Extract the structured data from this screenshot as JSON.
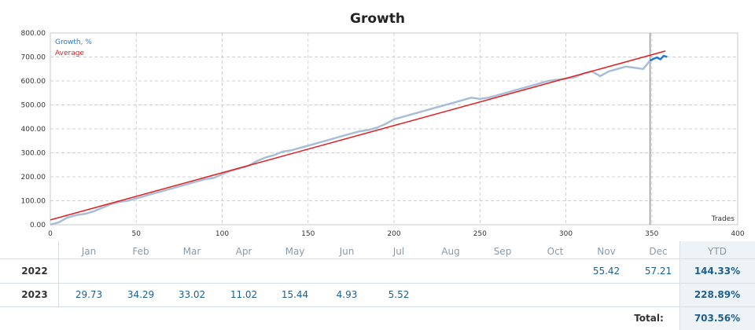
{
  "chart_data": {
    "type": "line",
    "title": "Growth",
    "xlabel": "Trades",
    "ylabel": "",
    "xlim": [
      0,
      400
    ],
    "ylim": [
      0,
      800
    ],
    "x_ticks": [
      "0",
      "50",
      "100",
      "150",
      "200",
      "250",
      "300",
      "350",
      "400"
    ],
    "y_ticks": [
      "0.00",
      "100.00",
      "200.00",
      "300.00",
      "400.00",
      "500.00",
      "600.00",
      "700.00",
      "800.00"
    ],
    "legend": [
      "Growth, %",
      "Average"
    ],
    "legend_position": "top-left",
    "grid": true,
    "colors": {
      "growth": "#a8bed6",
      "growth_recent": "#1f78d1",
      "average": "#e02020",
      "grid": "#d0d0d0",
      "marker": "#9a9a9a"
    },
    "series": [
      {
        "name": "Growth, %",
        "x": [
          0,
          5,
          10,
          15,
          20,
          25,
          30,
          35,
          40,
          45,
          50,
          55,
          60,
          65,
          70,
          75,
          80,
          85,
          90,
          95,
          100,
          105,
          110,
          115,
          120,
          125,
          130,
          135,
          140,
          145,
          150,
          155,
          160,
          165,
          170,
          175,
          180,
          185,
          190,
          195,
          200,
          205,
          210,
          215,
          220,
          225,
          230,
          235,
          240,
          245,
          250,
          255,
          260,
          265,
          270,
          275,
          280,
          285,
          290,
          295,
          300,
          305,
          310,
          315,
          320,
          325,
          330,
          335,
          340,
          345,
          349
        ],
        "y": [
          0,
          10,
          30,
          40,
          45,
          55,
          70,
          85,
          95,
          100,
          110,
          120,
          130,
          140,
          150,
          160,
          170,
          180,
          190,
          195,
          210,
          225,
          235,
          245,
          265,
          280,
          290,
          305,
          310,
          320,
          330,
          340,
          350,
          360,
          370,
          380,
          390,
          395,
          405,
          420,
          440,
          450,
          460,
          470,
          480,
          490,
          500,
          510,
          520,
          530,
          525,
          530,
          540,
          550,
          560,
          570,
          580,
          590,
          600,
          605,
          610,
          615,
          630,
          640,
          620,
          640,
          650,
          660,
          655,
          650,
          685
        ]
      },
      {
        "name": "Growth, % (recent)",
        "x": [
          349,
          351,
          353,
          355,
          357,
          359
        ],
        "y": [
          685,
          692,
          698,
          690,
          705,
          700
        ]
      },
      {
        "name": "Average",
        "x": [
          0,
          358
        ],
        "y": [
          20,
          725
        ]
      }
    ],
    "vertical_marker_x": 349
  },
  "table": {
    "months": [
      "Jan",
      "Feb",
      "Mar",
      "Apr",
      "May",
      "Jun",
      "Jul",
      "Aug",
      "Sep",
      "Oct",
      "Nov",
      "Dec"
    ],
    "ytd_label": "YTD",
    "rows": [
      {
        "year": "2022",
        "values": [
          "",
          "",
          "",
          "",
          "",
          "",
          "",
          "",
          "",
          "",
          "55.42",
          "57.21"
        ],
        "ytd": "144.33%"
      },
      {
        "year": "2023",
        "values": [
          "29.73",
          "34.29",
          "33.02",
          "11.02",
          "15.44",
          "4.93",
          "5.52",
          "",
          "",
          "",
          "",
          ""
        ],
        "ytd": "228.89%"
      }
    ],
    "total_label": "Total:",
    "total_value": "703.56%"
  }
}
